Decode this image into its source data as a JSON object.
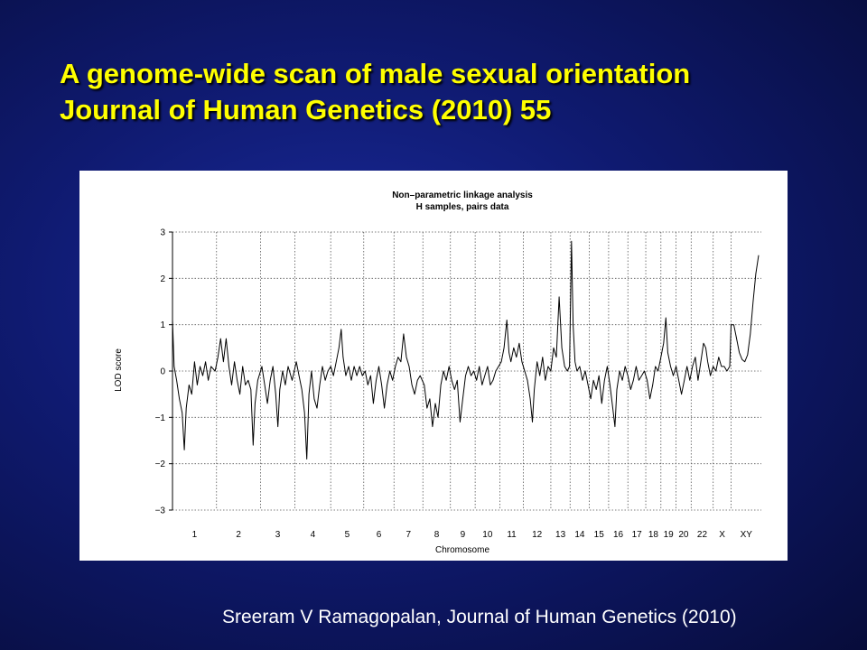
{
  "slide": {
    "title_line1": "A genome-wide scan of male sexual orientation",
    "title_line2": "Journal of Human Genetics (2010) 55",
    "citation": "Sreeram V Ramagopalan,  Journal of Human Genetics (2010)"
  },
  "colors": {
    "title": "#ffff00",
    "background": "#0f1a70",
    "trace": "#000000",
    "panel": "#ffffff"
  },
  "chart_data": {
    "type": "line",
    "title": "Non–parametric linkage analysis",
    "subtitle": "H samples, pairs data",
    "xlabel": "Chromosome",
    "ylabel": "LOD score",
    "ylim": [
      -3,
      3
    ],
    "yticks": [
      3,
      2,
      1,
      0,
      -1,
      -2,
      -3
    ],
    "ytick_labels": [
      "3",
      "2",
      "1",
      "0",
      "−1",
      "−2",
      "−3"
    ],
    "grid": true,
    "chromosomes": [
      {
        "label": "1",
        "start": 0,
        "end": 16.0
      },
      {
        "label": "2",
        "start": 16.0,
        "end": 32.0
      },
      {
        "label": "3",
        "start": 32.0,
        "end": 44.5
      },
      {
        "label": "4",
        "start": 44.5,
        "end": 57.5
      },
      {
        "label": "5",
        "start": 57.5,
        "end": 69.5
      },
      {
        "label": "6",
        "start": 69.5,
        "end": 80.5
      },
      {
        "label": "7",
        "start": 80.5,
        "end": 91.0
      },
      {
        "label": "8",
        "start": 91.0,
        "end": 101.0
      },
      {
        "label": "9",
        "start": 101.0,
        "end": 110.0
      },
      {
        "label": "10",
        "start": 110.0,
        "end": 119.0
      },
      {
        "label": "11",
        "start": 119.0,
        "end": 127.5
      },
      {
        "label": "12",
        "start": 127.5,
        "end": 137.5
      },
      {
        "label": "13",
        "start": 137.5,
        "end": 144.5
      },
      {
        "label": "14",
        "start": 144.5,
        "end": 151.5
      },
      {
        "label": "15",
        "start": 151.5,
        "end": 158.5
      },
      {
        "label": "16",
        "start": 158.5,
        "end": 165.5
      },
      {
        "label": "17",
        "start": 165.5,
        "end": 172.0
      },
      {
        "label": "18",
        "start": 172.0,
        "end": 177.5
      },
      {
        "label": "19",
        "start": 177.5,
        "end": 183.0
      },
      {
        "label": "20",
        "start": 183.0,
        "end": 188.5
      },
      {
        "label": "22",
        "start": 188.5,
        "end": 196.5
      },
      {
        "label": "X",
        "start": 196.5,
        "end": 203.0
      },
      {
        "label": "XY",
        "start": 203.0,
        "end": 214.0
      }
    ],
    "series": [
      {
        "values": [
          [
            0.0,
            1.1
          ],
          [
            0.6,
            0.1
          ],
          [
            1.5,
            -0.2
          ],
          [
            2.5,
            -0.6
          ],
          [
            3.5,
            -0.9
          ],
          [
            4.3,
            -1.7
          ],
          [
            5.0,
            -0.8
          ],
          [
            6.0,
            -0.3
          ],
          [
            7.0,
            -0.5
          ],
          [
            8.0,
            0.2
          ],
          [
            9.0,
            -0.3
          ],
          [
            10.0,
            0.1
          ],
          [
            11.0,
            -0.1
          ],
          [
            12.0,
            0.2
          ],
          [
            13.0,
            -0.2
          ],
          [
            14.0,
            0.1
          ],
          [
            15.5,
            0.0
          ],
          [
            16.5,
            0.3
          ],
          [
            17.5,
            0.7
          ],
          [
            18.5,
            0.2
          ],
          [
            19.5,
            0.7
          ],
          [
            20.5,
            0.1
          ],
          [
            21.5,
            -0.3
          ],
          [
            22.5,
            0.2
          ],
          [
            23.5,
            -0.2
          ],
          [
            24.5,
            -0.5
          ],
          [
            25.5,
            0.1
          ],
          [
            26.5,
            -0.3
          ],
          [
            27.5,
            -0.2
          ],
          [
            28.5,
            -0.4
          ],
          [
            29.3,
            -1.6
          ],
          [
            30.0,
            -0.7
          ],
          [
            31.0,
            -0.2
          ],
          [
            32.5,
            0.1
          ],
          [
            33.5,
            -0.3
          ],
          [
            34.5,
            -0.7
          ],
          [
            35.5,
            -0.2
          ],
          [
            36.5,
            0.1
          ],
          [
            37.5,
            -0.5
          ],
          [
            38.3,
            -1.2
          ],
          [
            39.0,
            -0.4
          ],
          [
            40.0,
            0.0
          ],
          [
            41.0,
            -0.3
          ],
          [
            42.0,
            0.1
          ],
          [
            43.5,
            -0.2
          ],
          [
            45.0,
            0.2
          ],
          [
            46.0,
            -0.1
          ],
          [
            47.0,
            -0.4
          ],
          [
            48.0,
            -0.9
          ],
          [
            48.8,
            -1.9
          ],
          [
            49.6,
            -0.5
          ],
          [
            50.5,
            0.0
          ],
          [
            51.5,
            -0.6
          ],
          [
            52.5,
            -0.8
          ],
          [
            53.5,
            -0.3
          ],
          [
            54.5,
            0.1
          ],
          [
            55.5,
            -0.2
          ],
          [
            56.5,
            0.0
          ],
          [
            57.5,
            0.1
          ],
          [
            58.5,
            -0.1
          ],
          [
            59.5,
            0.2
          ],
          [
            60.5,
            0.5
          ],
          [
            61.3,
            0.9
          ],
          [
            62.0,
            0.3
          ],
          [
            63.0,
            -0.1
          ],
          [
            64.0,
            0.1
          ],
          [
            65.0,
            -0.2
          ],
          [
            66.0,
            0.1
          ],
          [
            67.0,
            -0.1
          ],
          [
            68.0,
            0.1
          ],
          [
            69.0,
            -0.1
          ],
          [
            70.0,
            0.0
          ],
          [
            71.0,
            -0.3
          ],
          [
            72.0,
            -0.1
          ],
          [
            73.0,
            -0.7
          ],
          [
            74.0,
            -0.2
          ],
          [
            75.0,
            0.1
          ],
          [
            76.0,
            -0.3
          ],
          [
            77.0,
            -0.8
          ],
          [
            78.0,
            -0.3
          ],
          [
            79.0,
            0.0
          ],
          [
            80.0,
            -0.2
          ],
          [
            81.0,
            0.1
          ],
          [
            82.0,
            0.3
          ],
          [
            83.0,
            0.2
          ],
          [
            84.0,
            0.8
          ],
          [
            85.0,
            0.3
          ],
          [
            86.0,
            0.1
          ],
          [
            87.0,
            -0.3
          ],
          [
            88.0,
            -0.5
          ],
          [
            89.0,
            -0.2
          ],
          [
            90.0,
            -0.1
          ],
          [
            91.5,
            -0.3
          ],
          [
            92.5,
            -0.8
          ],
          [
            93.5,
            -0.6
          ],
          [
            94.5,
            -1.2
          ],
          [
            95.5,
            -0.7
          ],
          [
            96.5,
            -1.0
          ],
          [
            97.5,
            -0.3
          ],
          [
            98.5,
            0.0
          ],
          [
            99.5,
            -0.2
          ],
          [
            100.5,
            0.1
          ],
          [
            101.5,
            -0.2
          ],
          [
            102.5,
            -0.4
          ],
          [
            103.5,
            -0.2
          ],
          [
            104.5,
            -1.1
          ],
          [
            105.5,
            -0.6
          ],
          [
            106.5,
            -0.1
          ],
          [
            107.5,
            0.1
          ],
          [
            108.5,
            -0.1
          ],
          [
            109.5,
            0.0
          ],
          [
            110.5,
            -0.2
          ],
          [
            111.5,
            0.1
          ],
          [
            112.5,
            -0.3
          ],
          [
            113.5,
            -0.1
          ],
          [
            114.5,
            0.1
          ],
          [
            115.5,
            -0.3
          ],
          [
            116.5,
            -0.2
          ],
          [
            117.5,
            0.0
          ],
          [
            118.5,
            0.1
          ],
          [
            119.5,
            0.2
          ],
          [
            120.5,
            0.5
          ],
          [
            121.5,
            1.1
          ],
          [
            122.3,
            0.4
          ],
          [
            123.0,
            0.2
          ],
          [
            124.0,
            0.5
          ],
          [
            125.0,
            0.3
          ],
          [
            126.0,
            0.6
          ],
          [
            127.0,
            0.2
          ],
          [
            128.0,
            0.0
          ],
          [
            129.0,
            -0.2
          ],
          [
            130.0,
            -0.6
          ],
          [
            130.8,
            -1.1
          ],
          [
            131.5,
            -0.4
          ],
          [
            132.5,
            0.2
          ],
          [
            133.5,
            -0.1
          ],
          [
            134.5,
            0.3
          ],
          [
            135.5,
            -0.2
          ],
          [
            136.5,
            0.1
          ],
          [
            137.5,
            0.0
          ],
          [
            138.5,
            0.5
          ],
          [
            139.5,
            0.3
          ],
          [
            140.5,
            1.6
          ],
          [
            141.5,
            0.5
          ],
          [
            142.5,
            0.1
          ],
          [
            143.5,
            0.0
          ],
          [
            144.3,
            0.1
          ],
          [
            145.0,
            2.8
          ],
          [
            145.6,
            1.0
          ],
          [
            146.3,
            0.2
          ],
          [
            147.0,
            0.0
          ],
          [
            148.0,
            0.1
          ],
          [
            149.0,
            -0.2
          ],
          [
            150.0,
            0.0
          ],
          [
            151.0,
            -0.3
          ],
          [
            152.0,
            -0.6
          ],
          [
            153.0,
            -0.2
          ],
          [
            154.0,
            -0.4
          ],
          [
            155.0,
            -0.1
          ],
          [
            156.0,
            -0.7
          ],
          [
            157.0,
            -0.2
          ],
          [
            158.0,
            0.1
          ],
          [
            159.0,
            -0.3
          ],
          [
            160.0,
            -0.8
          ],
          [
            160.8,
            -1.2
          ],
          [
            161.5,
            -0.4
          ],
          [
            162.5,
            0.0
          ],
          [
            163.5,
            -0.2
          ],
          [
            164.5,
            0.1
          ],
          [
            165.5,
            -0.1
          ],
          [
            166.5,
            -0.4
          ],
          [
            167.5,
            -0.2
          ],
          [
            168.5,
            0.1
          ],
          [
            169.5,
            -0.2
          ],
          [
            170.5,
            -0.1
          ],
          [
            171.5,
            0.0
          ],
          [
            172.5,
            -0.2
          ],
          [
            173.5,
            -0.6
          ],
          [
            174.5,
            -0.3
          ],
          [
            175.5,
            0.1
          ],
          [
            176.5,
            0.0
          ],
          [
            177.5,
            0.3
          ],
          [
            178.5,
            0.6
          ],
          [
            179.3,
            1.15
          ],
          [
            180.0,
            0.4
          ],
          [
            181.0,
            0.1
          ],
          [
            182.0,
            -0.1
          ],
          [
            183.0,
            0.1
          ],
          [
            184.0,
            -0.2
          ],
          [
            185.0,
            -0.5
          ],
          [
            186.0,
            -0.2
          ],
          [
            187.0,
            0.1
          ],
          [
            188.0,
            -0.2
          ],
          [
            189.0,
            0.1
          ],
          [
            190.0,
            0.3
          ],
          [
            191.0,
            -0.2
          ],
          [
            192.0,
            0.2
          ],
          [
            193.0,
            0.6
          ],
          [
            193.8,
            0.5
          ],
          [
            194.5,
            0.2
          ],
          [
            195.5,
            -0.1
          ],
          [
            196.5,
            0.1
          ],
          [
            197.5,
            0.0
          ],
          [
            198.5,
            0.3
          ],
          [
            199.5,
            0.1
          ],
          [
            200.5,
            0.1
          ],
          [
            201.5,
            0.0
          ],
          [
            202.5,
            0.1
          ],
          [
            203.0,
            1.0
          ],
          [
            204.0,
            1.0
          ],
          [
            205.0,
            0.7
          ],
          [
            206.0,
            0.4
          ],
          [
            207.0,
            0.25
          ],
          [
            208.0,
            0.2
          ],
          [
            209.0,
            0.35
          ],
          [
            210.0,
            0.8
          ],
          [
            211.0,
            1.5
          ],
          [
            212.0,
            2.1
          ],
          [
            213.0,
            2.5
          ]
        ]
      }
    ]
  }
}
